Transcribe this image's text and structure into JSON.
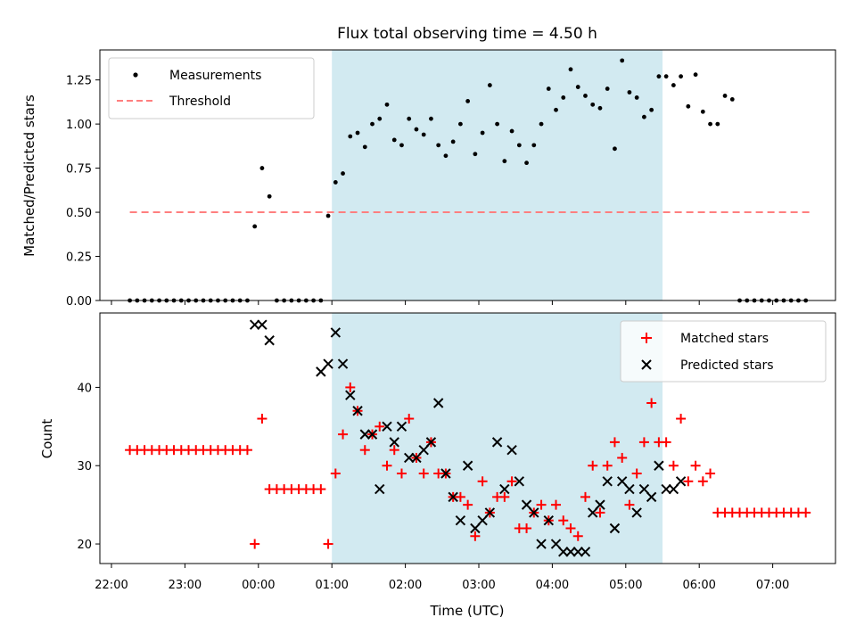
{
  "chart_data": [
    {
      "type": "scatter",
      "title": "Flux total observing time = 4.50 h",
      "xlabel": "",
      "ylabel": "Matched/Predicted stars",
      "ylim": [
        0,
        1.42
      ],
      "yticks": [
        "0.00",
        "0.25",
        "0.50",
        "0.75",
        "1.00",
        "1.25"
      ],
      "shaded_interval": [
        "01:00",
        "05:30"
      ],
      "shade_color": "#add8e6",
      "legend": "top-left",
      "threshold": {
        "name": "Threshold",
        "value": 0.5,
        "x_range": [
          "22:15",
          "07:30"
        ],
        "color": "#ff7f7f",
        "style": "dashed"
      },
      "series": [
        {
          "name": "Measurements",
          "color": "#000000",
          "marker": "dot",
          "x": [
            "22:15",
            "22:21",
            "22:27",
            "22:33",
            "22:39",
            "22:45",
            "22:51",
            "22:57",
            "23:03",
            "23:09",
            "23:15",
            "23:21",
            "23:27",
            "23:33",
            "23:39",
            "23:45",
            "23:51",
            "23:57",
            "00:03",
            "00:09",
            "00:15",
            "00:21",
            "00:27",
            "00:33",
            "00:39",
            "00:45",
            "00:51",
            "00:57",
            "01:03",
            "01:09",
            "01:15",
            "01:21",
            "01:27",
            "01:33",
            "01:39",
            "01:45",
            "01:51",
            "01:57",
            "02:03",
            "02:09",
            "02:15",
            "02:21",
            "02:27",
            "02:33",
            "02:39",
            "02:45",
            "02:51",
            "02:57",
            "03:03",
            "03:09",
            "03:15",
            "03:21",
            "03:27",
            "03:33",
            "03:39",
            "03:45",
            "03:51",
            "03:57",
            "04:03",
            "04:09",
            "04:15",
            "04:21",
            "04:27",
            "04:33",
            "04:39",
            "04:45",
            "04:51",
            "04:57",
            "05:03",
            "05:09",
            "05:15",
            "05:21",
            "05:27",
            "05:33",
            "05:39",
            "05:45",
            "05:51",
            "05:57",
            "06:03",
            "06:09",
            "06:15",
            "06:21",
            "06:27",
            "06:33",
            "06:39",
            "06:45",
            "06:51",
            "06:57",
            "07:03",
            "07:09",
            "07:15",
            "07:21",
            "07:27"
          ],
          "y": [
            0,
            0,
            0,
            0,
            0,
            0,
            0,
            0,
            0,
            0,
            0,
            0,
            0,
            0,
            0,
            0,
            0,
            0.42,
            0.75,
            0.59,
            0,
            0,
            0,
            0,
            0,
            0,
            0,
            0.48,
            0.67,
            0.72,
            0.93,
            0.95,
            0.87,
            1.0,
            1.03,
            1.11,
            0.91,
            0.88,
            1.03,
            0.97,
            0.94,
            1.03,
            0.88,
            0.82,
            0.9,
            1.0,
            1.13,
            0.83,
            0.95,
            1.22,
            1.0,
            0.79,
            0.96,
            0.88,
            0.78,
            0.88,
            1.0,
            1.2,
            1.08,
            1.15,
            1.31,
            1.21,
            1.16,
            1.11,
            1.09,
            1.2,
            0.86,
            1.36,
            1.18,
            1.15,
            1.04,
            1.08,
            1.27,
            1.27,
            1.22,
            1.27,
            1.1,
            1.28,
            1.07,
            1.0,
            1.0,
            1.16,
            1.14,
            0,
            0,
            0,
            0,
            0,
            0,
            0,
            0,
            0,
            0
          ]
        }
      ],
      "shown_points_note": ""
    },
    {
      "type": "scatter",
      "title": "",
      "xlabel": "Time (UTC)",
      "ylabel": "Count",
      "ylim": [
        17.5,
        49.5
      ],
      "yticks": [
        "20",
        "30",
        "40"
      ],
      "xticks": [
        "22:00",
        "23:00",
        "00:00",
        "01:00",
        "02:00",
        "03:00",
        "04:00",
        "05:00",
        "06:00",
        "07:00"
      ],
      "legend": "top-right",
      "series": [
        {
          "name": "Matched stars",
          "color": "#ff0000",
          "marker": "plus",
          "x": [
            "22:15",
            "22:21",
            "22:27",
            "22:33",
            "22:39",
            "22:45",
            "22:51",
            "22:57",
            "23:03",
            "23:09",
            "23:15",
            "23:21",
            "23:27",
            "23:33",
            "23:39",
            "23:45",
            "23:51",
            "23:57",
            "00:03",
            "00:09",
            "00:15",
            "00:21",
            "00:27",
            "00:33",
            "00:39",
            "00:45",
            "00:51",
            "00:57",
            "01:03",
            "01:09",
            "01:15",
            "01:21",
            "01:27",
            "01:33",
            "01:39",
            "01:45",
            "01:51",
            "01:57",
            "02:03",
            "02:09",
            "02:15",
            "02:21",
            "02:27",
            "02:33",
            "02:39",
            "02:45",
            "02:51",
            "02:57",
            "03:03",
            "03:09",
            "03:15",
            "03:21",
            "03:27",
            "03:33",
            "03:39",
            "03:45",
            "03:51",
            "03:57",
            "04:03",
            "04:09",
            "04:15",
            "04:21",
            "04:27",
            "04:33",
            "04:39",
            "04:45",
            "04:51",
            "04:57",
            "05:03",
            "05:09",
            "05:15",
            "05:21",
            "05:27",
            "05:33",
            "05:39",
            "05:45",
            "05:51",
            "05:57",
            "06:03",
            "06:09",
            "06:15",
            "06:21",
            "06:27",
            "06:33",
            "06:39",
            "06:45",
            "06:51",
            "06:57",
            "07:03",
            "07:09",
            "07:15",
            "07:21",
            "07:27"
          ],
          "y": [
            32,
            32,
            32,
            32,
            32,
            32,
            32,
            32,
            32,
            32,
            32,
            32,
            32,
            32,
            32,
            32,
            32,
            20,
            36,
            27,
            27,
            27,
            27,
            27,
            27,
            27,
            27,
            20,
            29,
            34,
            40,
            37,
            32,
            34,
            35,
            30,
            32,
            29,
            36,
            31,
            29,
            33,
            29,
            29,
            26,
            26,
            25,
            21,
            28,
            24,
            26,
            26,
            28,
            22,
            22,
            24,
            25,
            23,
            25,
            23,
            22,
            21,
            26,
            30,
            24,
            30,
            33,
            31,
            25,
            29,
            33,
            38,
            33,
            33,
            30,
            36,
            28,
            30,
            28,
            29,
            24,
            24,
            24,
            24,
            24,
            24,
            24,
            24,
            24,
            24,
            24,
            24,
            24
          ]
        },
        {
          "name": "Predicted stars",
          "color": "#000000",
          "marker": "x",
          "x": [
            "23:57",
            "00:03",
            "00:09",
            "00:51",
            "00:57",
            "01:03",
            "01:09",
            "01:15",
            "01:21",
            "01:27",
            "01:33",
            "01:39",
            "01:45",
            "01:51",
            "01:57",
            "02:03",
            "02:09",
            "02:15",
            "02:21",
            "02:27",
            "02:33",
            "02:39",
            "02:45",
            "02:51",
            "02:57",
            "03:03",
            "03:09",
            "03:15",
            "03:21",
            "03:27",
            "03:33",
            "03:39",
            "03:45",
            "03:51",
            "03:57",
            "04:03",
            "04:09",
            "04:15",
            "04:21",
            "04:27",
            "04:33",
            "04:39",
            "04:45",
            "04:51",
            "04:57",
            "05:03",
            "05:09",
            "05:15",
            "05:21",
            "05:27",
            "05:33",
            "05:39",
            "05:45"
          ],
          "y": [
            48,
            48,
            46,
            42,
            43,
            47,
            43,
            39,
            37,
            34,
            34,
            27,
            35,
            33,
            35,
            31,
            31,
            32,
            33,
            38,
            29,
            26,
            23,
            30,
            22,
            23,
            24,
            33,
            27,
            32,
            28,
            25,
            24,
            20,
            23,
            20,
            19,
            19,
            19,
            19,
            24,
            25,
            28,
            22,
            28,
            27,
            24,
            27,
            26,
            30,
            27,
            27,
            28
          ]
        }
      ]
    }
  ]
}
